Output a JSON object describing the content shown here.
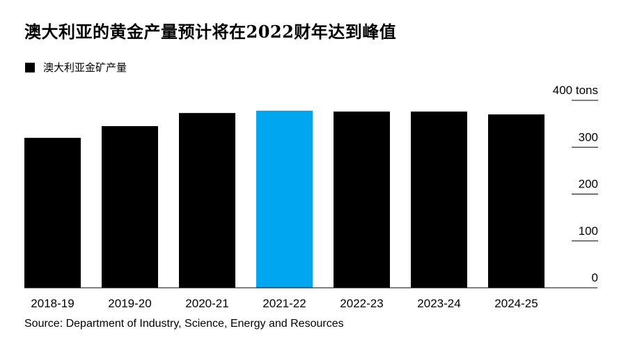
{
  "title": "澳大利亚的黄金产量预计将在2022财年达到峰值",
  "legend": {
    "label": "澳大利亚金矿产量"
  },
  "source": "Source: Department of Industry, Science, Energy and Resources",
  "colors": {
    "default_bar": "#000000",
    "highlight_bar": "#00a6f0",
    "axis": "#000000"
  },
  "chart_data": {
    "type": "bar",
    "title": "澳大利亚的黄金产量预计将在2022财年达到峰值",
    "categories": [
      "2018-19",
      "2019-20",
      "2020-21",
      "2021-22",
      "2022-23",
      "2023-24",
      "2024-25"
    ],
    "series": [
      {
        "name": "澳大利亚金矿产量",
        "values": [
          320,
          345,
          373,
          378,
          376,
          376,
          370
        ]
      }
    ],
    "highlight_index": 3,
    "ylim": [
      0,
      400
    ],
    "yticks": [
      {
        "value": 0,
        "label": "0"
      },
      {
        "value": 100,
        "label": "100"
      },
      {
        "value": 200,
        "label": "200"
      },
      {
        "value": 300,
        "label": "300"
      },
      {
        "value": 400,
        "label": "400 tons"
      }
    ],
    "axis_position": "right",
    "grid": false,
    "legend_position": "top-left"
  }
}
